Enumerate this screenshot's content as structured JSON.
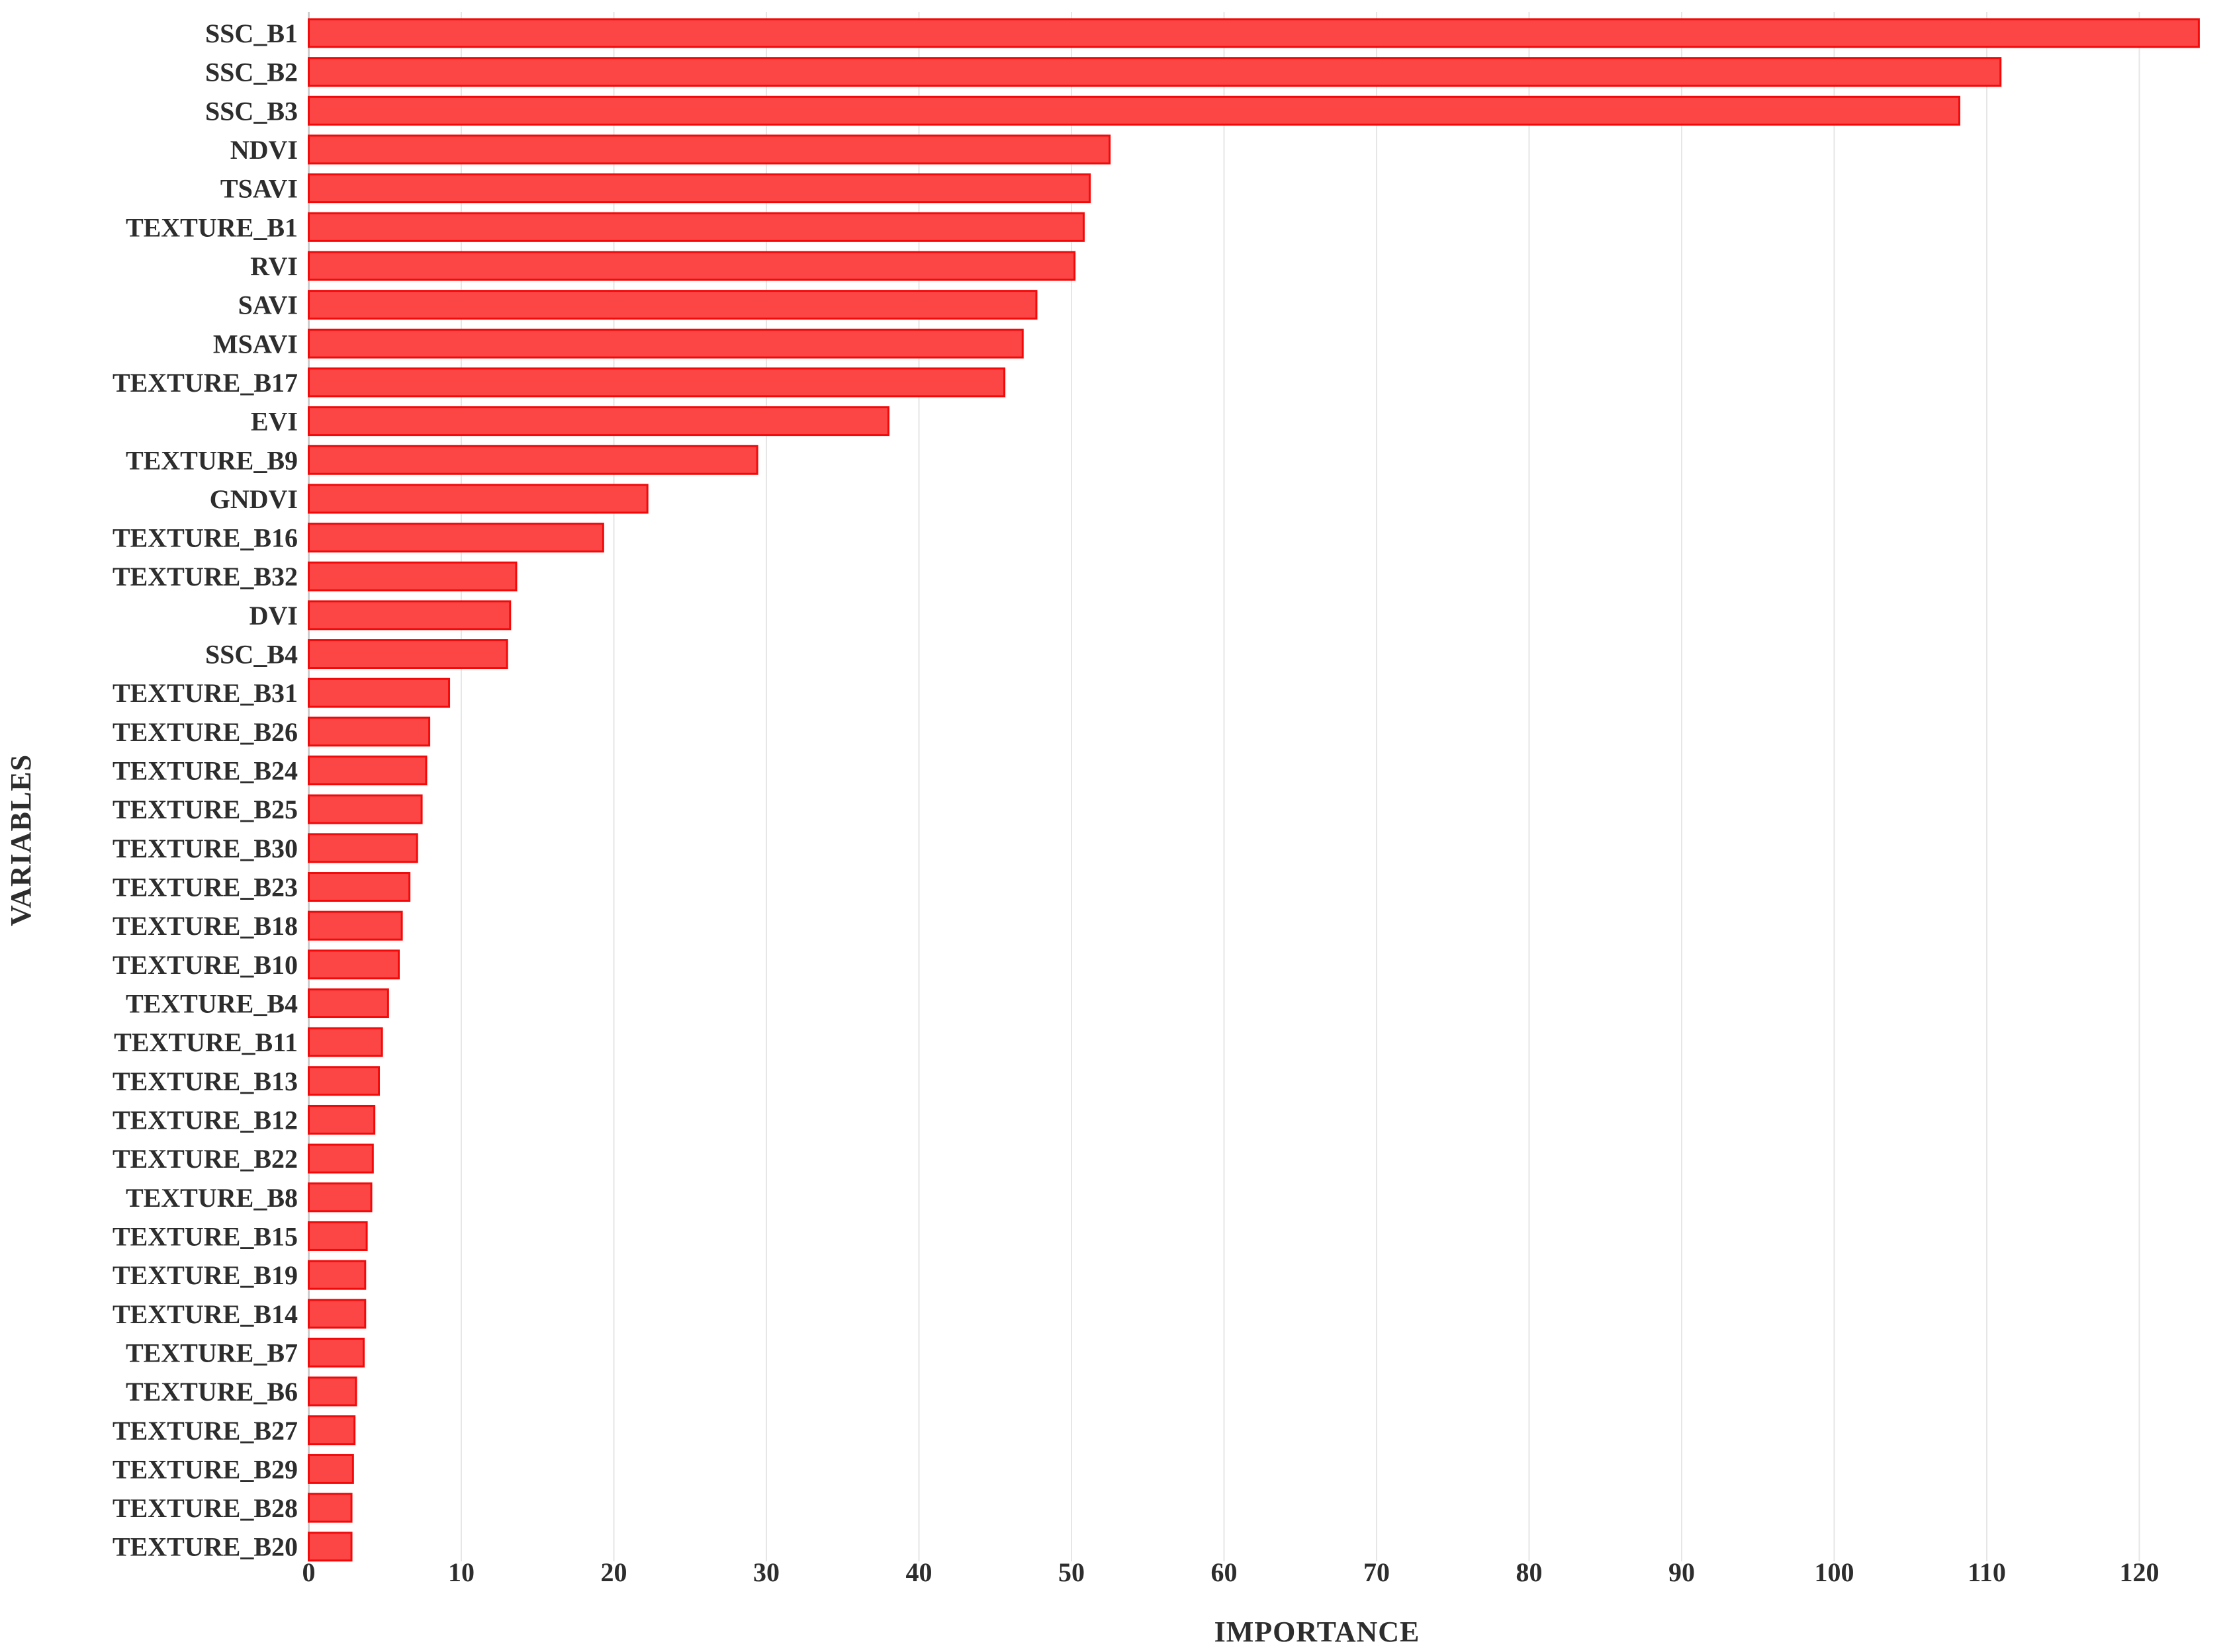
{
  "chart_data": {
    "type": "bar",
    "orientation": "horizontal",
    "title": "",
    "xlabel": "IMPORTANCE",
    "ylabel": "VARIABLES",
    "xlim": [
      0,
      126
    ],
    "xticks": [
      0,
      10,
      20,
      30,
      40,
      50,
      60,
      70,
      80,
      90,
      100,
      110,
      120
    ],
    "grid": true,
    "legend": "none",
    "categories": [
      "SSC_B1",
      "SSC_B2",
      "SSC_B3",
      "NDVI",
      "TSAVI",
      "TEXTURE_B1",
      "RVI",
      "SAVI",
      "MSAVI",
      "TEXTURE_B17",
      "EVI",
      "TEXTURE_B9",
      "GNDVI",
      "TEXTURE_B16",
      "TEXTURE_B32",
      "DVI",
      "SSC_B4",
      "TEXTURE_B31",
      "TEXTURE_B26",
      "TEXTURE_B24",
      "TEXTURE_B25",
      "TEXTURE_B30",
      "TEXTURE_B23",
      "TEXTURE_B18",
      "TEXTURE_B10",
      "TEXTURE_B4",
      "TEXTURE_B11",
      "TEXTURE_B13",
      "TEXTURE_B12",
      "TEXTURE_B22",
      "TEXTURE_B8",
      "TEXTURE_B15",
      "TEXTURE_B19",
      "TEXTURE_B14",
      "TEXTURE_B7",
      "TEXTURE_B6",
      "TEXTURE_B27",
      "TEXTURE_B29",
      "TEXTURE_B28",
      "TEXTURE_B20"
    ],
    "values": [
      123.9,
      110.9,
      108.2,
      52.5,
      51.2,
      50.8,
      50.2,
      47.7,
      46.8,
      45.6,
      38.0,
      29.4,
      22.2,
      19.3,
      13.6,
      13.2,
      13.0,
      9.2,
      7.9,
      7.7,
      7.4,
      7.1,
      6.6,
      6.1,
      5.9,
      5.2,
      4.8,
      4.6,
      4.3,
      4.2,
      4.1,
      3.8,
      3.7,
      3.7,
      3.6,
      3.1,
      3.0,
      2.9,
      2.8,
      2.8
    ],
    "colors": {
      "bar_fill": "#FC4545",
      "bar_stroke": "#F20A0A",
      "grid_line": "#E6E6E6",
      "axis_line": "#CDCDCD",
      "text": "#2D2D2D",
      "background": "#FFFFFF"
    }
  }
}
